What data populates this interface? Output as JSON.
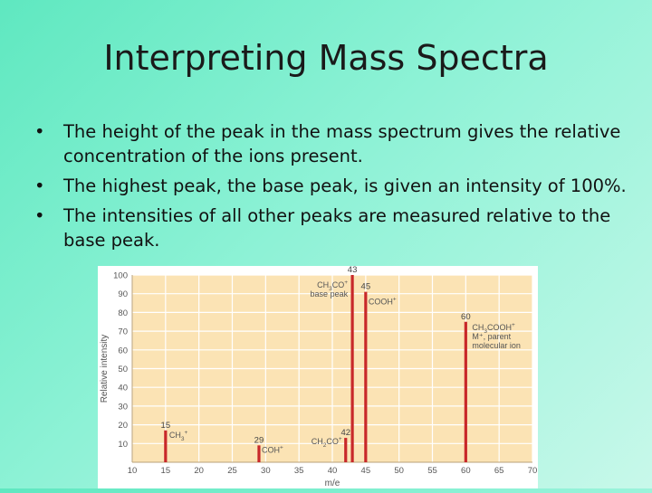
{
  "slide": {
    "title": "Interpreting Mass Spectra",
    "bullets": [
      "The height of the peak in the mass spectrum gives the relative concentration of the ions present.",
      "The highest peak, the base peak, is given an intensity of 100%.",
      "The intensities of all other peaks are measured relative to the base peak."
    ]
  },
  "colors": {
    "plot_bg": "#fbe3b4",
    "bar": "#c8282a",
    "grid": "#ffffff"
  },
  "chart_data": {
    "type": "bar",
    "xlabel": "m/e",
    "ylabel": "Relative intensity",
    "xlim": [
      10,
      70
    ],
    "ylim": [
      0,
      100
    ],
    "xticks": [
      10,
      15,
      20,
      25,
      30,
      35,
      40,
      45,
      50,
      55,
      60,
      65,
      70
    ],
    "yticks": [
      10,
      20,
      30,
      40,
      50,
      60,
      70,
      80,
      90,
      100
    ],
    "grid": true,
    "peaks": [
      {
        "x": 15,
        "y": 17,
        "peak_label": "15",
        "ion": "CH",
        "ion_sub": "3",
        "ion_sup": "+"
      },
      {
        "x": 29,
        "y": 9,
        "peak_label": "29",
        "ion": "COH",
        "ion_sup": "+"
      },
      {
        "x": 42,
        "y": 13,
        "peak_label": "42",
        "ion": "CH",
        "ion_sub": "2",
        "ion_tail": "CO",
        "ion_sup": "+"
      },
      {
        "x": 43,
        "y": 100,
        "peak_label": "43",
        "ion": "CH",
        "ion_sub": "3",
        "ion_tail": "CO",
        "ion_sup": "+",
        "note": "base peak"
      },
      {
        "x": 45,
        "y": 91,
        "peak_label": "45",
        "ion": "COOH",
        "ion_sup": "+"
      },
      {
        "x": 60,
        "y": 75,
        "peak_label": "60",
        "ion": "CH",
        "ion_sub": "3",
        "ion_tail": "COOH",
        "ion_sup": "+",
        "note": "M⁺, parent",
        "note2": "molecular ion"
      }
    ]
  }
}
